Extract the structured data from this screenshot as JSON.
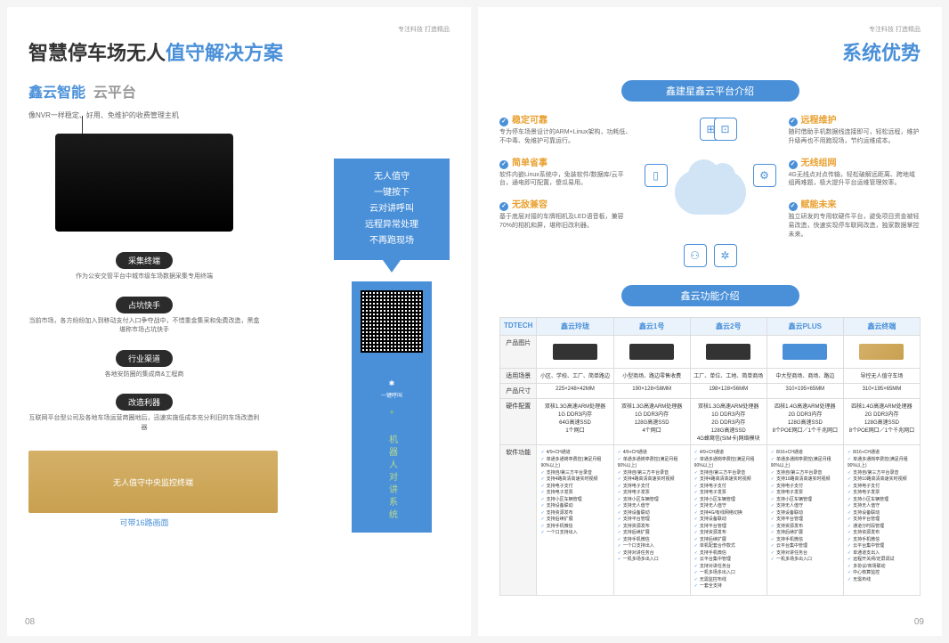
{
  "header_tag": "专注科技  打造精品",
  "left": {
    "title_a": "智慧停车场无人",
    "title_b": "值守解决方案",
    "section_a": "鑫云智能",
    "section_b": "云平台",
    "subtitle": "像NVR一样稳定、好用、免维护的收费管理主机",
    "pills": [
      {
        "label": "采集终端",
        "desc": "作为公安交管平台中城市级车场数据采集专用终端"
      },
      {
        "label": "占坑快手",
        "desc": "当前市场，各方纷纷加入到移动支付入口争夺战中，不惜重金集采和免费改造，黑盒堪称市场占坑快手"
      },
      {
        "label": "行业渠道",
        "desc": "各地安防圈的集成商&工程商"
      },
      {
        "label": "改造利器",
        "desc": "互联网平台型公司及各地车场运营商圈地后，迅速实施低成本充分利旧的车场改造利器"
      }
    ],
    "banner": [
      "无人值守",
      "一键按下",
      "云对讲呼叫",
      "远程异常处理",
      "不再跑现场"
    ],
    "qr_label": "机器人对讲系统",
    "gold_label": "无人值守中央监控终端",
    "link16": "可带16路画面",
    "page": "08"
  },
  "right": {
    "title": "系统优势",
    "badge1": "鑫建星鑫云平台介绍",
    "badge2": "鑫云功能介绍",
    "feats_left": [
      {
        "t": "稳定可靠",
        "d": "专为停车场景设计的ARM+Linux架构，功耗低、不中毒、免维护可靠运行。"
      },
      {
        "t": "简单省事",
        "d": "软件内嵌Linux系统中，免装软件/数据库/云平台，通电即可配置，傻瓜易用。"
      },
      {
        "t": "无敌兼容",
        "d": "基于底层对接的车牌相机及LED语音板，兼容70%的相机和屏，堪称旧改利器。"
      }
    ],
    "feats_right": [
      {
        "t": "远程维护",
        "d": "随时借助手机数据线连接即可，轻松远程，维护升级再也不用跑现场，节约运维成本。"
      },
      {
        "t": "无线组网",
        "d": "4G无线点对点传输，轻松破解远距离、跨地域组两难题，极大提升平台运维管理效率。"
      },
      {
        "t": "赋能未来",
        "d": "独立研发的专用软硬件平台，避免项目资金被轻易改造，快速实现停车联网改造，独家数据掌控未来。"
      }
    ],
    "table": {
      "head": [
        "TDTECH",
        "鑫云玲珑",
        "鑫云1号",
        "鑫云2号",
        "鑫云PLUS",
        "鑫云终端"
      ],
      "rows": {
        "r1": "产品图片",
        "r2": {
          "label": "适用场景",
          "cells": [
            "小区、学校、工厂、简单路边",
            "小型商场、路边零售收费",
            "工厂、单位、工地、简单商场",
            "中大型商场、商场、路边",
            "导控无人值守车场"
          ]
        },
        "r3": {
          "label": "产品尺寸",
          "cells": [
            "225×248×42MM",
            "190×128×58MM",
            "198×128×56MM",
            "310×195×65MM",
            "310×195×65MM"
          ]
        },
        "r4": {
          "label": "硬件配置",
          "cells": [
            "双核1.3G高速ARM处理器\n1G DDR3内存\n64G高速SSD\n1个网口",
            "双核1.3G高速ARM处理器\n1G DDR3内存\n128G高速SSD\n4个网口",
            "双核1.3G高速ARM处理器\n1G DDR3内存\n2G DDR3内存\n128G高速SSD\n4G蜂窝信(SIM卡)网络模块",
            "四核1.4G高速ARM处理器\n2G DDR3内存\n128G高速SSD\n8个POE网口／1个千兆网口",
            "四核1.4G高速ARM处理器\n2G DDR3内存\n128G高速SSD\n8个POE网口／1个千兆网口"
          ]
        },
        "r5": "软件功能"
      },
      "sw_features": [
        [
          "4/9+CH通道",
          "单通多通岗亭费控(满足月租90%以上)",
          "支持自/第三方平台录音",
          "支持4路高清高速实时视频",
          "支持电子支付",
          "支持电子发票",
          "支持小区车辆管理",
          "支持设备联动",
          "支持资源发布",
          "支持后续扩展",
          "支持手机微信",
          "一个口支持出入"
        ],
        [
          "4/9+CH通道",
          "单通多通岗亭费控(满足月租90%以上)",
          "支持自/第三方平台录音",
          "支持4路高清高速实时视频",
          "支持电子支付",
          "支持电子发票",
          "支持小区车辆管理",
          "支持无人值守",
          "支持设备联动",
          "支持平台管理",
          "支持资源发布",
          "支持后续扩展",
          "支持手机微信",
          "一个口支持出入",
          "支持对讲任务台",
          "一机多场多出入口"
        ],
        [
          "4/9+CH通道",
          "单通多通岗亭费控(满足月租90%以上)",
          "支持自/第三方平台录音",
          "支持4路高清高速实时视频",
          "支持电子支付",
          "支持电子发票",
          "支持小区车辆管理",
          "支持无人值守",
          "支持4G/有线网络切换",
          "支持设备联动",
          "支持平台管理",
          "支持资源发布",
          "支持后续扩展",
          "单机配套合作款式",
          "支持手机微信",
          "云平台集中管理",
          "支持对讲任务台",
          "一机多场多出入口",
          "无需监控布线",
          "一套全支持"
        ],
        [
          "8/16+CH通道",
          "单通多通岗亭费控(满足月租90%以上)",
          "支持自/第三方平台录音",
          "支持10路高清高速实时视频",
          "支持电子支付",
          "支持电子发票",
          "支持小区车辆管理",
          "支持无人值守",
          "支持设备联动",
          "支持平台管理",
          "支持资源发布",
          "支持后续扩展",
          "支持手机微信",
          "云平台集中管理",
          "支持对讲任务台",
          "一机多场多出入口"
        ],
        [
          "8/16+CH通道",
          "单通多通岗亭费控(满足月租90%以上)",
          "支持自/第三方平台录音",
          "支持10路高清高速实时视频",
          "支持电子支付",
          "支持电子发票",
          "支持小区车辆管理",
          "支持无人值守",
          "支持设备联动",
          "支持平台管理",
          "通道分时段管理",
          "支持资源发布",
          "支持手机微信",
          "云平台集中管理",
          "单通道支出入",
          "远程开关闸/定屏调试",
          "多协议/商场联动",
          "中心核算监控",
          "无需布线"
        ]
      ]
    },
    "page": "09"
  }
}
